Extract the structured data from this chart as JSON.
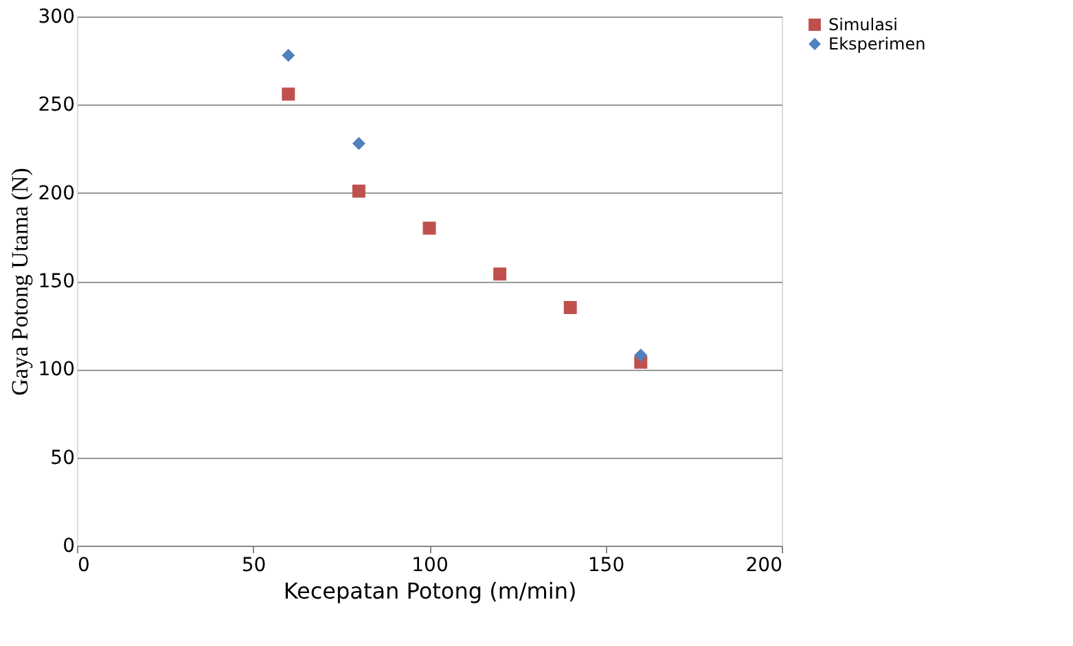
{
  "chart_data": {
    "type": "scatter",
    "xlabel": "Kecepatan Potong  (m/min)",
    "ylabel": "Gaya  Potong  Utama  (N)",
    "series": [
      {
        "name": "Simulasi",
        "color": "#c0504d",
        "marker": "square",
        "x": [
          60,
          80,
          100,
          120,
          140,
          160
        ],
        "values": [
          256,
          201,
          180,
          154,
          135,
          104
        ]
      },
      {
        "name": "Eksperimen",
        "color": "#4f81bd",
        "marker": "diamond",
        "x": [
          60,
          80,
          160
        ],
        "values": [
          278,
          228,
          108
        ]
      }
    ],
    "xlim": [
      0,
      200
    ],
    "xticks": [
      0,
      50,
      100,
      150,
      200
    ],
    "ylim": [
      0,
      300
    ],
    "yticks": [
      0,
      50,
      100,
      150,
      200,
      250,
      300
    ],
    "grid": "y",
    "legend": "right"
  }
}
